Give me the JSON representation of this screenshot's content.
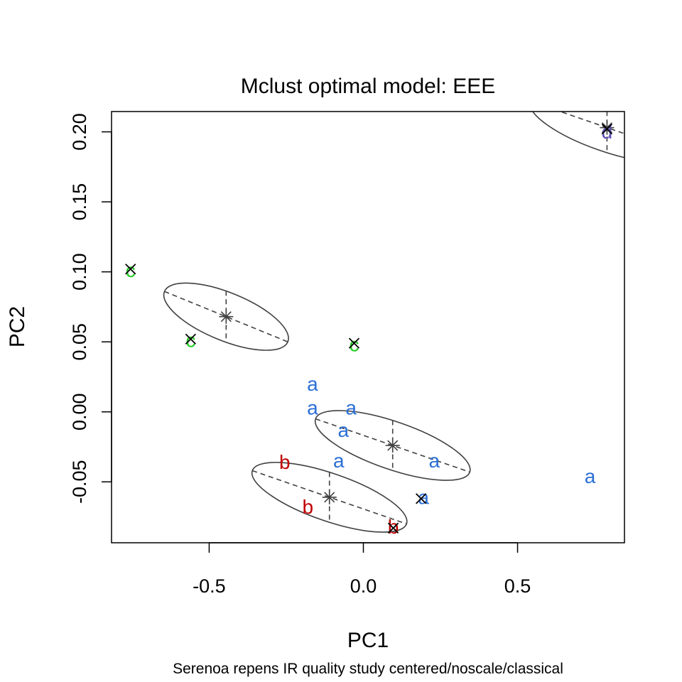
{
  "chart_data": {
    "type": "scatter",
    "title": "Mclust optimal model: EEE",
    "xlabel": "PC1",
    "ylabel": "PC2",
    "subtitle": "Serenoa repens IR quality study  centered/noscale/classical",
    "xlim": [
      -0.8166,
      0.8466
    ],
    "ylim": [
      -0.0935,
      0.2145
    ],
    "xticks": [
      -0.5,
      0.0,
      0.5
    ],
    "xtick_labels": [
      "-0.5",
      "0.0",
      "0.5"
    ],
    "yticks": [
      -0.05,
      0.0,
      0.05,
      0.1,
      0.15,
      0.2
    ],
    "ytick_labels": [
      "-0.05",
      "0.00",
      "0.05",
      "0.10",
      "0.15",
      "0.20"
    ],
    "grid": false,
    "colors": {
      "a": "#2b6fd6",
      "b": "#c00000",
      "c": "#22cc22",
      "d": "#5a4fb5",
      "ellipse": "#404040",
      "axis": "#000000"
    },
    "points": [
      {
        "label": "a",
        "x": -0.165,
        "y": 0.02
      },
      {
        "label": "a",
        "x": -0.165,
        "y": 0.003
      },
      {
        "label": "a",
        "x": -0.04,
        "y": 0.003
      },
      {
        "label": "a",
        "x": -0.065,
        "y": -0.013
      },
      {
        "label": "a",
        "x": -0.08,
        "y": -0.035
      },
      {
        "label": "a",
        "x": 0.23,
        "y": -0.035
      },
      {
        "label": "a",
        "x": 0.735,
        "y": -0.046
      },
      {
        "label": "a",
        "x": 0.195,
        "y": -0.061
      },
      {
        "label": "b",
        "x": -0.255,
        "y": -0.036
      },
      {
        "label": "b",
        "x": -0.18,
        "y": -0.068
      },
      {
        "label": "b",
        "x": 0.097,
        "y": -0.082
      },
      {
        "label": "c",
        "x": -0.755,
        "y": 0.101
      },
      {
        "label": "c",
        "x": -0.56,
        "y": 0.051
      },
      {
        "label": "c",
        "x": -0.03,
        "y": 0.048
      },
      {
        "label": "d",
        "x": 0.79,
        "y": 0.2
      }
    ],
    "misclassified": [
      {
        "x": -0.755,
        "y": 0.102
      },
      {
        "x": -0.56,
        "y": 0.052
      },
      {
        "x": -0.03,
        "y": 0.049
      },
      {
        "x": 0.187,
        "y": -0.062
      },
      {
        "x": 0.097,
        "y": -0.083
      },
      {
        "x": 0.79,
        "y": 0.202
      }
    ],
    "clusters": [
      {
        "center": {
          "x": -0.445,
          "y": 0.068
        },
        "major_end": {
          "x": -0.245,
          "y": 0.05
        },
        "minor_end": {
          "x": -0.445,
          "y": 0.0495
        }
      },
      {
        "center": {
          "x": 0.095,
          "y": -0.024
        },
        "major_end": {
          "x": 0.345,
          "y": -0.043
        },
        "minor_end": {
          "x": 0.095,
          "y": -0.042
        }
      },
      {
        "center": {
          "x": -0.11,
          "y": -0.061
        },
        "major_end": {
          "x": 0.14,
          "y": -0.08
        },
        "minor_end": {
          "x": -0.11,
          "y": -0.079
        }
      },
      {
        "center": {
          "x": 0.79,
          "y": 0.203
        },
        "major_end": {
          "x": 1.04,
          "y": 0.184
        },
        "minor_end": {
          "x": 0.79,
          "y": 0.185
        }
      }
    ]
  }
}
